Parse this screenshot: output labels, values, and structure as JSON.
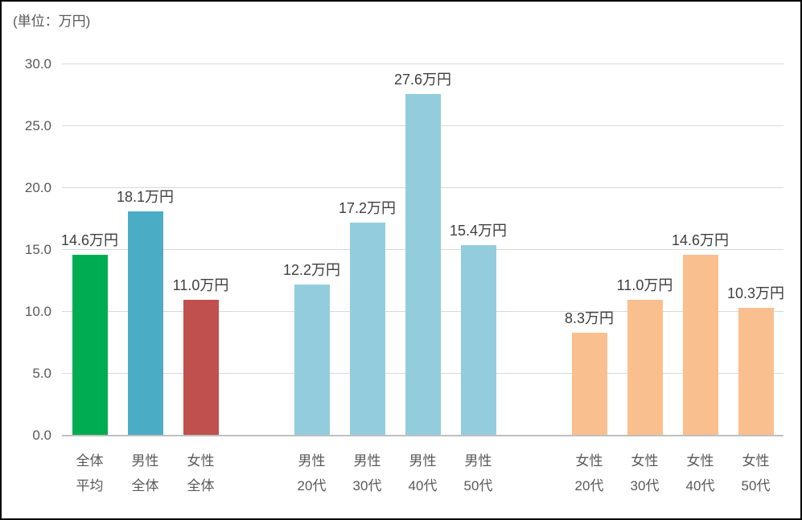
{
  "chart_data": {
    "type": "bar",
    "title": "",
    "unit_label": "(単位：万円)",
    "xlabel": "",
    "ylabel": "万円",
    "ylim": [
      0,
      30
    ],
    "ytick_interval": 5,
    "yticks": [
      "30.0",
      "25.0",
      "20.0",
      "15.0",
      "10.0",
      "5.0",
      "0.0"
    ],
    "grid": true,
    "legend": false,
    "total_slots": 13,
    "colors": {
      "overall_average": "#00AC51",
      "male_total": "#4BACC6",
      "female_total": "#C0504D",
      "male_by_age": "#93CDDD",
      "female_by_age": "#FABF8F",
      "gridline": "#D9D9D9",
      "axis_line": "#BFBFBF",
      "tick_text": "#595959",
      "data_label_text": "#404040"
    },
    "bars": [
      {
        "slot": 0,
        "label_line1": "全体",
        "label_line2": "平均",
        "value": 14.6,
        "data_label": "14.6万円",
        "color": "#00AC51"
      },
      {
        "slot": 1,
        "label_line1": "男性",
        "label_line2": "全体",
        "value": 18.1,
        "data_label": "18.1万円",
        "color": "#4BACC6"
      },
      {
        "slot": 2,
        "label_line1": "女性",
        "label_line2": "全体",
        "value": 11.0,
        "data_label": "11.0万円",
        "color": "#C0504D"
      },
      {
        "slot": 4,
        "label_line1": "男性",
        "label_line2": "20代",
        "value": 12.2,
        "data_label": "12.2万円",
        "color": "#93CDDD"
      },
      {
        "slot": 5,
        "label_line1": "男性",
        "label_line2": "30代",
        "value": 17.2,
        "data_label": "17.2万円",
        "color": "#93CDDD"
      },
      {
        "slot": 6,
        "label_line1": "男性",
        "label_line2": "40代",
        "value": 27.6,
        "data_label": "27.6万円",
        "color": "#93CDDD"
      },
      {
        "slot": 7,
        "label_line1": "男性",
        "label_line2": "50代",
        "value": 15.4,
        "data_label": "15.4万円",
        "color": "#93CDDD"
      },
      {
        "slot": 9,
        "label_line1": "女性",
        "label_line2": "20代",
        "value": 8.3,
        "data_label": "8.3万円",
        "color": "#FABF8F"
      },
      {
        "slot": 10,
        "label_line1": "女性",
        "label_line2": "30代",
        "value": 11.0,
        "data_label": "11.0万円",
        "color": "#FABF8F"
      },
      {
        "slot": 11,
        "label_line1": "女性",
        "label_line2": "40代",
        "value": 14.6,
        "data_label": "14.6万円",
        "color": "#FABF8F"
      },
      {
        "slot": 12,
        "label_line1": "女性",
        "label_line2": "50代",
        "value": 10.3,
        "data_label": "10.3万円",
        "color": "#FABF8F"
      }
    ]
  }
}
